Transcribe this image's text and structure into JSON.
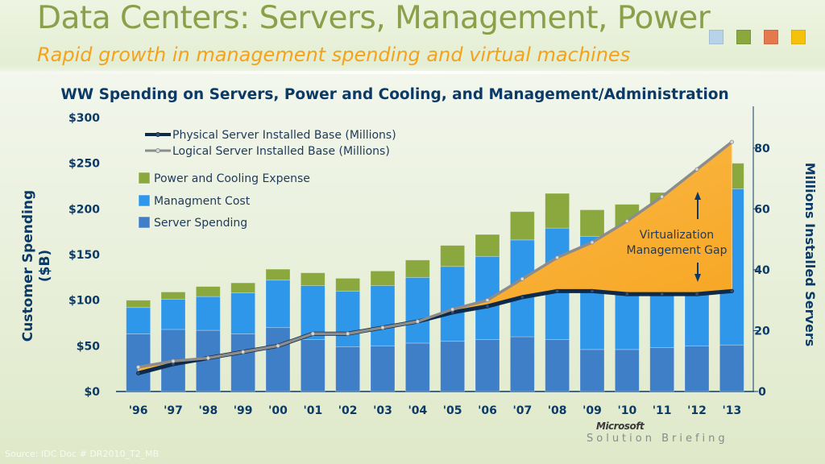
{
  "slide": {
    "title": "Data Centers: Servers, Management, Power",
    "subtitle": "Rapid growth in management spending and virtual machines",
    "swatch_colors": [
      "#b7d3ea",
      "#8aa83e",
      "#e6784f",
      "#f4c20d"
    ],
    "source": "Source: IDC Doc # DR2010_T2_MB",
    "brand": "Microsoft",
    "brand_sub": "Solution Briefing"
  },
  "chart_data": {
    "type": "bar",
    "title": "WW Spending on Servers, Power and Cooling, and Management/Administration",
    "ylabel": "Customer Spending ($B)",
    "ylabel_lines": [
      "Customer Spending",
      "($B)"
    ],
    "y2label": "Millions Installed Servers",
    "ylim": [
      0,
      300
    ],
    "y2lim": [
      0,
      90
    ],
    "yticks": [
      "$0",
      "$50",
      "$100",
      "$150",
      "$200",
      "$250",
      "$300"
    ],
    "y2ticks": [
      "0",
      "20",
      "40",
      "60",
      "80"
    ],
    "categories": [
      "'96",
      "'97",
      "'98",
      "'99",
      "'00",
      "'01",
      "'02",
      "'03",
      "'04",
      "'05",
      "'06",
      "'07",
      "'08",
      "'09",
      "'10",
      "'11",
      "'12",
      "'13"
    ],
    "stacked": true,
    "series": [
      {
        "name": "Server Spending",
        "color": "#3f7fc7",
        "values": [
          63,
          68,
          67,
          63,
          70,
          57,
          49,
          50,
          53,
          55,
          57,
          60,
          57,
          46,
          46,
          48,
          50,
          51
        ]
      },
      {
        "name": "Managment Cost",
        "color": "#2f97ea",
        "values": [
          29,
          33,
          37,
          45,
          52,
          59,
          61,
          66,
          72,
          82,
          91,
          106,
          122,
          124,
          126,
          135,
          143,
          171
        ]
      },
      {
        "name": "Power and Cooling Expense",
        "color": "#8aa83e",
        "values": [
          8,
          8,
          11,
          11,
          12,
          14,
          14,
          16,
          19,
          23,
          24,
          31,
          38,
          29,
          33,
          35,
          36,
          28
        ]
      }
    ],
    "lines": [
      {
        "name": "Physical Server Installed Base (Millions)",
        "color": "#0d2a4a",
        "axis": "right",
        "values": [
          6,
          9,
          11,
          13,
          15,
          19,
          19,
          21,
          23,
          26,
          28,
          31,
          33,
          33,
          32,
          32,
          32,
          33
        ]
      },
      {
        "name": "Logical Server Installed Base (Millions)",
        "color": "#8c8c8c",
        "axis": "right",
        "values": [
          8,
          10,
          11,
          13,
          15,
          19,
          19,
          21,
          23,
          27,
          30,
          37,
          44,
          49,
          56,
          64,
          73,
          82
        ]
      }
    ],
    "annotation": {
      "text_lines": [
        "Virtualization",
        "Management Gap"
      ],
      "fill": "#f9a11b"
    },
    "legend_position": "top-left"
  }
}
